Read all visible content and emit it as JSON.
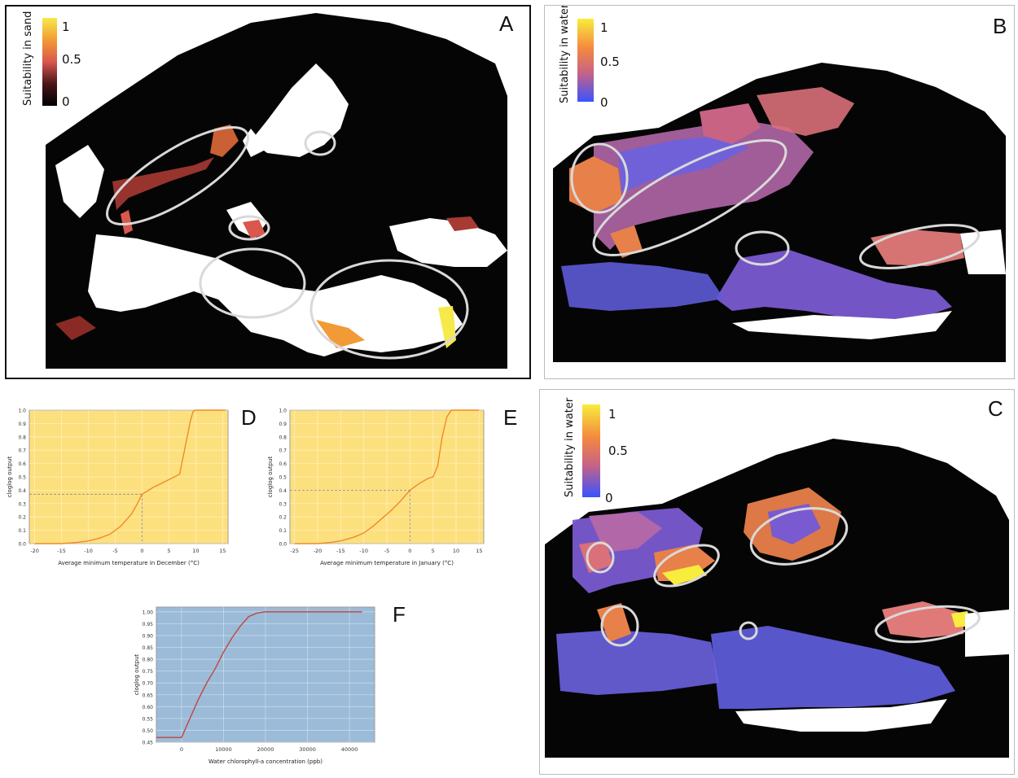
{
  "maps": {
    "A": {
      "label": "A",
      "legend_title": "Suitability in sand",
      "legend_ticks": [
        "1",
        "0.5",
        "0"
      ],
      "legend_colors": [
        "#f6e94a",
        "#f29a35",
        "#d9574c",
        "#4a1518",
        "#000000"
      ]
    },
    "B": {
      "label": "B",
      "legend_title": "Suitability in water",
      "legend_ticks": [
        "1",
        "0.5",
        "0"
      ],
      "legend_colors": [
        "#f8ec3c",
        "#f48a3f",
        "#c86384",
        "#3a53ff"
      ]
    },
    "C": {
      "label": "C",
      "legend_title": "Suitability in water",
      "legend_ticks": [
        "1",
        "0.5",
        "0"
      ],
      "legend_colors": [
        "#f8ec3c",
        "#f48a3f",
        "#c86384",
        "#3a53ff"
      ]
    }
  },
  "chart_data": [
    {
      "id": "D",
      "type": "line",
      "label": "D",
      "xlabel": "Average minimum temperature in December (°C)",
      "ylabel": "cloglog output",
      "xlim": [
        -21,
        16
      ],
      "ylim": [
        0,
        1.0
      ],
      "xticks": [
        "-20",
        "-15",
        "-10",
        "-5",
        "0",
        "5",
        "10",
        "15"
      ],
      "xtick_values": [
        -20,
        -15,
        -10,
        -5,
        0,
        5,
        10,
        15
      ],
      "yticks": [
        "0.0",
        "0.1",
        "0.2",
        "0.3",
        "0.4",
        "0.5",
        "0.6",
        "0.7",
        "0.8",
        "0.9",
        "1.0"
      ],
      "ytick_values": [
        0,
        0.1,
        0.2,
        0.3,
        0.4,
        0.5,
        0.6,
        0.7,
        0.8,
        0.9,
        1.0
      ],
      "x": [
        -20,
        -15,
        -12,
        -10,
        -8,
        -6,
        -4,
        -2,
        -1,
        0,
        2,
        4,
        6,
        7,
        8,
        9,
        9.5,
        10,
        12,
        14,
        15.5
      ],
      "y": [
        0.0,
        0.0,
        0.01,
        0.02,
        0.04,
        0.07,
        0.13,
        0.22,
        0.29,
        0.37,
        0.42,
        0.46,
        0.5,
        0.52,
        0.72,
        0.92,
        0.99,
        1.0,
        1.0,
        1.0,
        1.0
      ],
      "reference_point": [
        0,
        0.37
      ],
      "background": "#fde07e",
      "line_color": "#ef8a2a"
    },
    {
      "id": "E",
      "type": "line",
      "label": "E",
      "xlabel": "Average minimum temperature in January (°C)",
      "ylabel": "cloglog output",
      "xlim": [
        -26,
        16
      ],
      "ylim": [
        0,
        1.0
      ],
      "xticks": [
        "-25",
        "-20",
        "-15",
        "-10",
        "-5",
        "0",
        "5",
        "10",
        "15"
      ],
      "xtick_values": [
        -25,
        -20,
        -15,
        -10,
        -5,
        0,
        5,
        10,
        15
      ],
      "yticks": [
        "0.0",
        "0.1",
        "0.2",
        "0.3",
        "0.4",
        "0.5",
        "0.6",
        "0.7",
        "0.8",
        "0.9",
        "1.0"
      ],
      "ytick_values": [
        0,
        0.1,
        0.2,
        0.3,
        0.4,
        0.5,
        0.6,
        0.7,
        0.8,
        0.9,
        1.0
      ],
      "x": [
        -25,
        -20,
        -17,
        -15,
        -12,
        -10,
        -8,
        -6,
        -4,
        -2,
        0,
        2,
        4,
        5,
        6,
        7,
        8,
        9,
        10,
        12,
        15
      ],
      "y": [
        0.0,
        0.0,
        0.01,
        0.02,
        0.05,
        0.08,
        0.13,
        0.19,
        0.25,
        0.32,
        0.4,
        0.45,
        0.49,
        0.5,
        0.58,
        0.8,
        0.95,
        1.0,
        1.0,
        1.0,
        1.0
      ],
      "reference_point": [
        0,
        0.4
      ],
      "background": "#fde07e",
      "line_color": "#ef8a2a"
    },
    {
      "id": "F",
      "type": "line",
      "label": "F",
      "xlabel": "Water chlorophyll-a concentration (ppb)",
      "ylabel": "cloglog output",
      "xlim": [
        -6000,
        46000
      ],
      "ylim": [
        0.45,
        1.02
      ],
      "xticks": [
        "0",
        "10000",
        "20000",
        "30000",
        "40000"
      ],
      "xtick_values": [
        0,
        10000,
        20000,
        30000,
        40000
      ],
      "yticks": [
        "0.45",
        "0.50",
        "0.55",
        "0.60",
        "0.65",
        "0.70",
        "0.75",
        "0.80",
        "0.85",
        "0.90",
        "0.95",
        "1.00"
      ],
      "ytick_values": [
        0.45,
        0.5,
        0.55,
        0.6,
        0.65,
        0.7,
        0.75,
        0.8,
        0.85,
        0.9,
        0.95,
        1.0
      ],
      "x": [
        -6000,
        0,
        2000,
        4000,
        6000,
        8000,
        10000,
        12000,
        14000,
        16000,
        18000,
        20000,
        30000,
        40000,
        43000
      ],
      "y": [
        0.47,
        0.47,
        0.55,
        0.63,
        0.7,
        0.76,
        0.83,
        0.89,
        0.94,
        0.98,
        0.995,
        1.0,
        1.0,
        1.0,
        1.0
      ],
      "background": "#9bbbd8",
      "line_color": "#c0463c"
    }
  ]
}
